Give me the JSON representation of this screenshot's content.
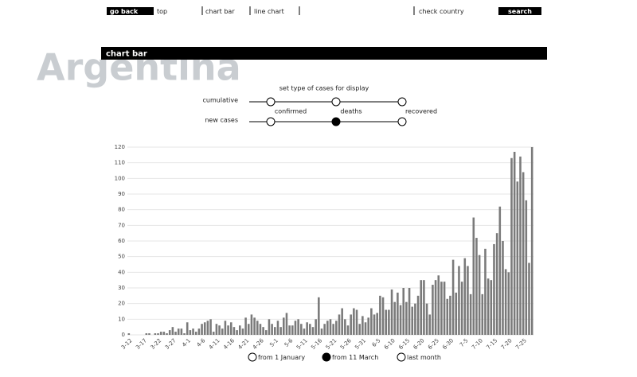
{
  "nav": {
    "back": "go back",
    "links": [
      "top",
      "chart bar",
      "line chart"
    ],
    "check": "check country",
    "search": "search"
  },
  "header": {
    "section": "chart bar",
    "country": "Argentina"
  },
  "controls": {
    "title": "set type of cases for display",
    "rows": [
      "cumulative",
      "new cases"
    ],
    "columns": [
      "confirmed",
      "deaths",
      "recovered"
    ],
    "selected_row": 1,
    "selected_column": 1
  },
  "range_options": [
    "from 1 January",
    "from 11 March",
    "last month"
  ],
  "selected_range": 1,
  "chart_data": {
    "type": "bar",
    "color": "#7a7a7a",
    "grid": true,
    "ylim": [
      0,
      120
    ],
    "yticks": [
      0,
      10,
      20,
      30,
      40,
      50,
      60,
      70,
      80,
      90,
      100,
      110,
      120
    ],
    "categories": [
      "3-12",
      null,
      null,
      null,
      null,
      "3-17",
      null,
      null,
      null,
      null,
      "3-22",
      null,
      null,
      null,
      null,
      "3-27",
      null,
      null,
      null,
      null,
      "4-1",
      null,
      null,
      null,
      null,
      "4-6",
      null,
      null,
      null,
      null,
      "4-11",
      null,
      null,
      null,
      null,
      "4-16",
      null,
      null,
      null,
      null,
      "4-21",
      null,
      null,
      null,
      null,
      "4-26",
      null,
      null,
      null,
      null,
      "5-1",
      null,
      null,
      null,
      null,
      "5-6",
      null,
      null,
      null,
      null,
      "5-11",
      null,
      null,
      null,
      null,
      "5-16",
      null,
      null,
      null,
      null,
      "5-21",
      null,
      null,
      null,
      null,
      "5-26",
      null,
      null,
      null,
      null,
      "5-31",
      null,
      null,
      null,
      null,
      "6-5",
      null,
      null,
      null,
      null,
      "6-10",
      null,
      null,
      null,
      null,
      "6-15",
      null,
      null,
      null,
      null,
      "6-20",
      null,
      null,
      null,
      null,
      "6-25",
      null,
      null,
      null,
      null,
      "6-30",
      null,
      null,
      null,
      null,
      "7-5",
      null,
      null,
      null,
      null,
      "7-10",
      null,
      null,
      null,
      null,
      "7-15",
      null,
      null,
      null,
      null,
      "7-20",
      null,
      null,
      null,
      null,
      "7-25",
      null,
      null,
      null
    ],
    "values": [
      1,
      0,
      0,
      0,
      0,
      0,
      1,
      1,
      0,
      1,
      1,
      2,
      2,
      1,
      3,
      5,
      2,
      4,
      4,
      1,
      8,
      3,
      4,
      2,
      4,
      7,
      8,
      9,
      10,
      2,
      7,
      6,
      4,
      9,
      6,
      8,
      5,
      3,
      6,
      4,
      11,
      7,
      13,
      11,
      9,
      7,
      5,
      3,
      10,
      7,
      5,
      9,
      5,
      11,
      14,
      6,
      6,
      9,
      10,
      7,
      4,
      8,
      7,
      5,
      10,
      24,
      4,
      7,
      9,
      10,
      7,
      9,
      13,
      17,
      10,
      6,
      13,
      17,
      16,
      7,
      12,
      8,
      11,
      17,
      13,
      14,
      25,
      24,
      16,
      16,
      29,
      21,
      27,
      19,
      30,
      21,
      30,
      18,
      20,
      25,
      35,
      35,
      20,
      13,
      32,
      35,
      38,
      34,
      34,
      23,
      25,
      48,
      27,
      44,
      34,
      49,
      44,
      26,
      75,
      62,
      51,
      26,
      55,
      36,
      35,
      58,
      65,
      82,
      60,
      42,
      40,
      113,
      117,
      98,
      114,
      104,
      86,
      46,
      120
    ]
  }
}
